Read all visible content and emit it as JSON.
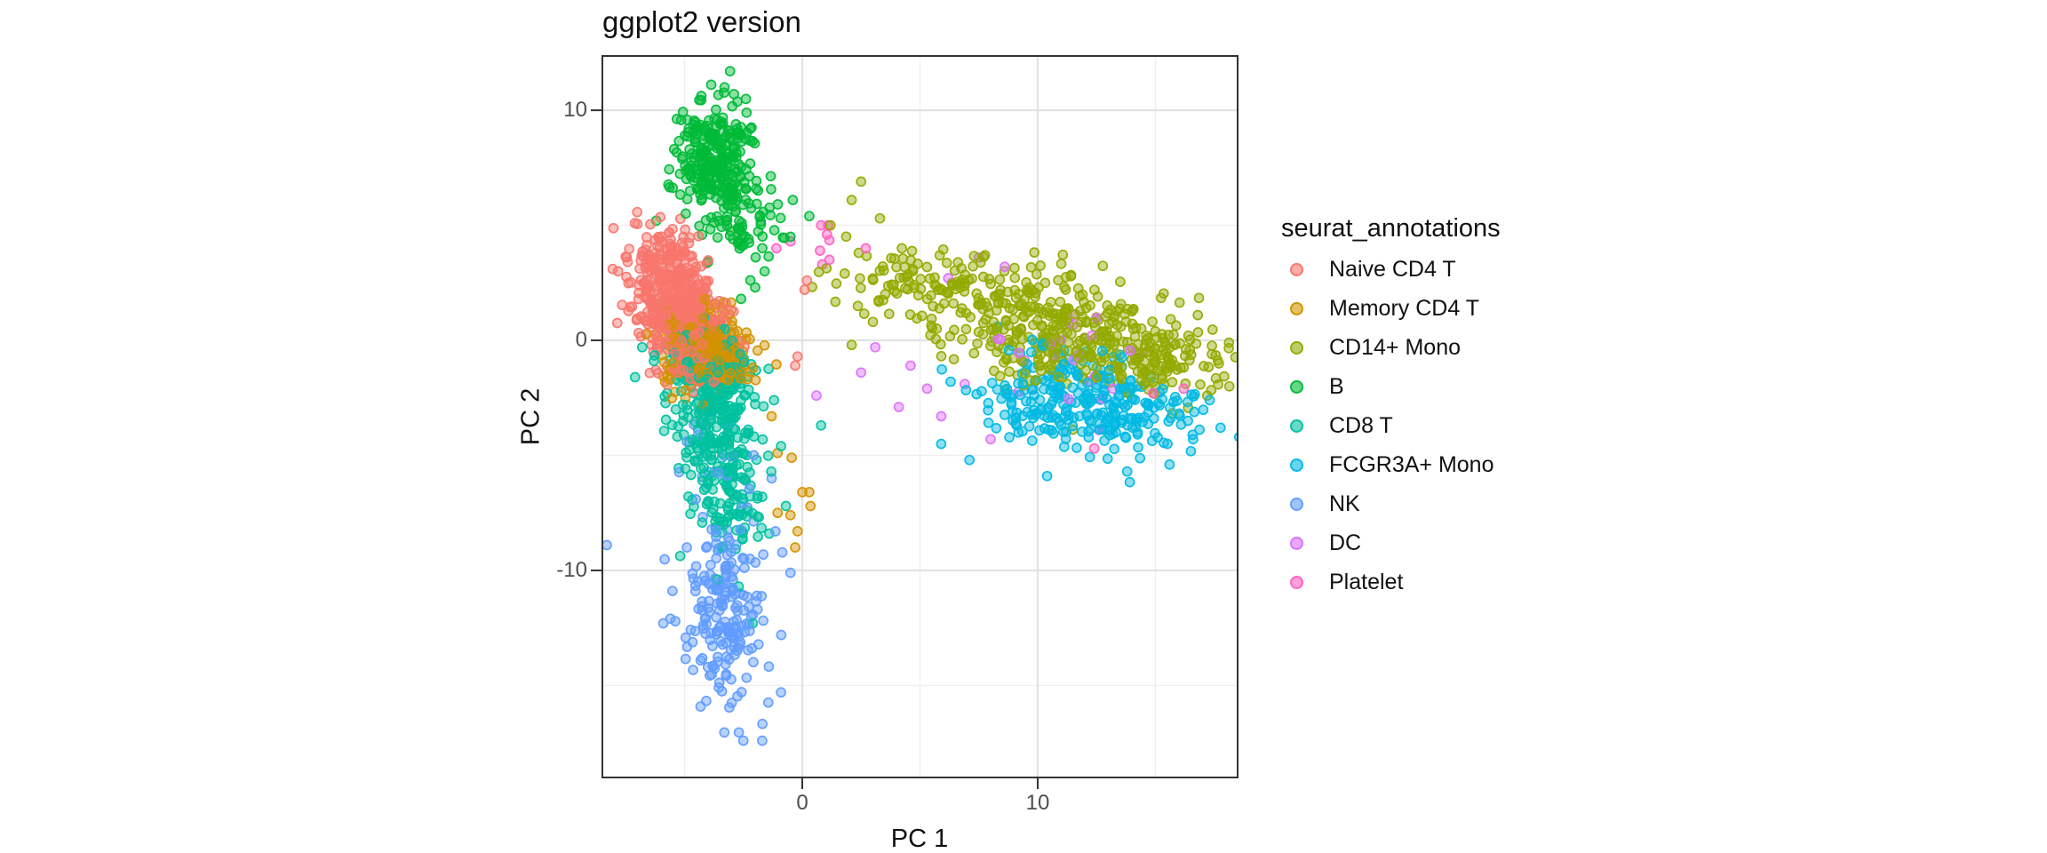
{
  "chart_data": {
    "type": "scatter",
    "title": "ggplot2 version",
    "xlabel": "PC 1",
    "ylabel": "PC 2",
    "legend_title": "seurat_annotations",
    "legend_position": "right",
    "grid": true,
    "xlim": [
      -8.49,
      18.49
    ],
    "ylim": [
      -19.0,
      12.36
    ],
    "x_ticks": [
      {
        "value": 0,
        "label": "0"
      },
      {
        "value": 10,
        "label": "10"
      }
    ],
    "y_ticks": [
      {
        "value": 10,
        "label": "10"
      },
      {
        "value": 0,
        "label": "0"
      },
      {
        "value": -10,
        "label": "-10"
      }
    ],
    "x_minor": [
      -5,
      5,
      15
    ],
    "y_minor": [
      5,
      -5,
      -15
    ],
    "panel": {
      "background": "#FFFFFF",
      "border_color": "#333333",
      "grid_major_color": "#E2E2E2",
      "grid_minor_color": "#EFEFEF",
      "tick_color": "#333333"
    },
    "point_style": {
      "radius": 5,
      "fill_opacity": 0.45,
      "stroke_opacity": 0.95,
      "stroke_width": 1.7
    },
    "seed": 42,
    "series": [
      {
        "name": "Naive CD4 T",
        "color": "#F8766D",
        "blobs": [
          [
            -5.6,
            1.9,
            0.85,
            1.1,
            260,
            0
          ],
          [
            -4.6,
            0.3,
            0.8,
            1.0,
            260,
            0
          ],
          [
            -5.9,
            3.9,
            0.7,
            0.6,
            60,
            0
          ]
        ],
        "points": [
          [
            -0.2,
            -0.7
          ],
          [
            -0.3,
            -1.1
          ],
          [
            0.2,
            2.6
          ],
          [
            0.1,
            2.2
          ]
        ]
      },
      {
        "name": "Memory CD4 T",
        "color": "#D39200",
        "blobs": [
          [
            -4.2,
            -0.45,
            0.85,
            0.85,
            300,
            0
          ],
          [
            -3.35,
            -1.0,
            0.65,
            0.65,
            90,
            0
          ],
          [
            -4.6,
            0.4,
            0.6,
            0.6,
            70,
            0
          ]
        ],
        "points": [
          [
            -1.05,
            -4.9
          ],
          [
            -0.45,
            -5.1
          ],
          [
            -1.05,
            -7.5
          ],
          [
            -0.5,
            -7.6
          ],
          [
            -0.2,
            -8.3
          ],
          [
            -0.3,
            -9.0
          ],
          [
            0.35,
            -7.2
          ],
          [
            0.3,
            -6.6
          ],
          [
            0.0,
            -6.6
          ],
          [
            -1.3,
            -3.3
          ]
        ]
      },
      {
        "name": "CD14+ Mono",
        "color": "#93AA00",
        "blobs": [
          [
            10.6,
            0.55,
            3.3,
            1.2,
            400,
            -14
          ],
          [
            4.9,
            2.6,
            1.5,
            0.8,
            55,
            -10
          ],
          [
            14.9,
            -0.9,
            1.4,
            0.8,
            70,
            -8
          ]
        ],
        "points": [
          [
            2.5,
            6.9
          ],
          [
            2.1,
            6.1
          ],
          [
            2.4,
            3.8
          ],
          [
            1.8,
            2.9
          ],
          [
            1.2,
            5.0
          ],
          [
            3.3,
            5.3
          ],
          [
            17.4,
            -0.6
          ],
          [
            17.2,
            -2.4
          ],
          [
            16.8,
            1.1
          ],
          [
            2.1,
            -0.2
          ],
          [
            3.0,
            0.8
          ]
        ]
      },
      {
        "name": "B",
        "color": "#00BA38",
        "blobs": [
          [
            -3.75,
            8.0,
            0.8,
            1.15,
            260,
            0
          ],
          [
            -2.8,
            5.8,
            0.95,
            0.8,
            55,
            0
          ],
          [
            -1.9,
            4.4,
            0.8,
            0.6,
            20,
            0
          ]
        ],
        "points": [
          [
            -3.3,
            11.0
          ],
          [
            -2.9,
            10.7
          ],
          [
            0.3,
            5.4
          ],
          [
            -0.4,
            6.1
          ],
          [
            -0.5,
            4.5
          ],
          [
            -6.2,
            5.2
          ],
          [
            -2.6,
            1.8
          ],
          [
            -2.0,
            2.3
          ],
          [
            -1.6,
            3.0
          ],
          [
            -4.0,
            3.4
          ]
        ]
      },
      {
        "name": "CD8 T",
        "color": "#00C19F",
        "blobs": [
          [
            -3.9,
            -2.2,
            0.85,
            1.1,
            170,
            0
          ],
          [
            -3.5,
            -4.8,
            0.85,
            1.5,
            170,
            0
          ],
          [
            -4.3,
            -0.9,
            0.7,
            0.6,
            70,
            0
          ],
          [
            -2.9,
            -7.3,
            0.7,
            0.8,
            45,
            0
          ]
        ],
        "points": [
          [
            -3.6,
            -10.4
          ],
          [
            -2.7,
            -10.7
          ],
          [
            -2.1,
            -12.3
          ],
          [
            0.8,
            -3.7
          ],
          [
            -1.2,
            -2.6
          ],
          [
            -0.9,
            -4.6
          ],
          [
            -1.4,
            -8.4
          ],
          [
            -6.8,
            -0.3
          ],
          [
            -6.3,
            -0.9
          ],
          [
            -7.1,
            -1.6
          ]
        ]
      },
      {
        "name": "FCGR3A+ Mono",
        "color": "#00B9E3",
        "blobs": [
          [
            12.6,
            -3.0,
            2.1,
            1.05,
            210,
            -8
          ],
          [
            9.6,
            -2.6,
            1.3,
            0.85,
            45,
            0
          ],
          [
            11.6,
            -1.4,
            1.6,
            0.7,
            35,
            -10
          ]
        ],
        "points": [
          [
            6.3,
            -1.8
          ],
          [
            5.9,
            -4.5
          ],
          [
            7.1,
            -5.2
          ],
          [
            17.3,
            -2.6
          ],
          [
            16.6,
            -4.3
          ],
          [
            15.6,
            -5.4
          ],
          [
            13.8,
            -5.7
          ],
          [
            8.3,
            0.6
          ],
          [
            10.4,
            -5.9
          ]
        ]
      },
      {
        "name": "NK",
        "color": "#619CFF",
        "blobs": [
          [
            -3.25,
            -12.0,
            0.85,
            1.25,
            130,
            0
          ],
          [
            -3.2,
            -9.5,
            1.0,
            0.75,
            35,
            0
          ],
          [
            -3.0,
            -14.9,
            0.75,
            0.75,
            20,
            0
          ],
          [
            -3.6,
            -5.6,
            1.1,
            1.5,
            22,
            0
          ]
        ],
        "points": [
          [
            -8.3,
            -8.9
          ],
          [
            -5.9,
            -12.3
          ],
          [
            -5.6,
            -12.1
          ],
          [
            -2.5,
            -17.4
          ],
          [
            -1.7,
            -17.4
          ],
          [
            -0.9,
            -15.3
          ],
          [
            -4.9,
            -4.4
          ],
          [
            -1.3,
            -6.0
          ],
          [
            -0.5,
            -10.1
          ],
          [
            -4.9,
            -9.0
          ]
        ]
      },
      {
        "name": "DC",
        "color": "#DB72FB",
        "blobs": [
          [
            10.7,
            -0.7,
            1.4,
            0.9,
            20,
            0
          ]
        ],
        "points": [
          [
            3.1,
            -0.3
          ],
          [
            2.5,
            -1.4
          ],
          [
            0.6,
            -2.4
          ],
          [
            4.6,
            -1.1
          ],
          [
            5.3,
            -2.1
          ],
          [
            6.2,
            2.7
          ],
          [
            7.5,
            3.6
          ],
          [
            8.6,
            3.2
          ],
          [
            6.9,
            -1.9
          ],
          [
            4.1,
            -2.9
          ],
          [
            8.0,
            -4.3
          ],
          [
            13.2,
            -2.1
          ],
          [
            12.6,
            -3.9
          ],
          [
            5.9,
            -3.3
          ]
        ]
      },
      {
        "name": "Platelet",
        "color": "#FF61C3",
        "blobs": [],
        "points": [
          [
            0.8,
            5.0
          ],
          [
            1.1,
            5.0
          ],
          [
            1.05,
            4.6
          ],
          [
            1.15,
            4.35
          ],
          [
            0.75,
            3.9
          ],
          [
            1.15,
            3.5
          ],
          [
            0.85,
            3.3
          ],
          [
            -0.5,
            4.3
          ],
          [
            -1.1,
            4.0
          ],
          [
            2.7,
            4.0
          ],
          [
            14.9,
            -2.3
          ],
          [
            16.2,
            -2.1
          ],
          [
            12.4,
            -4.7
          ]
        ]
      }
    ]
  }
}
